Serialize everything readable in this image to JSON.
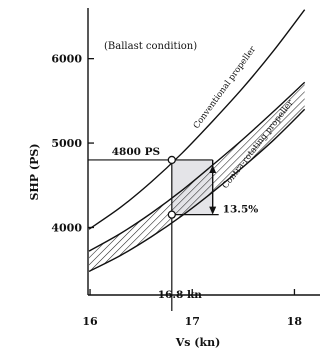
{
  "chart_data": {
    "type": "line",
    "xlabel": "Vs (kn)",
    "ylabel": "SHP (PS)",
    "xlim": [
      15.98,
      18.25
    ],
    "ylim": [
      3200,
      6600
    ],
    "xticks": [
      16,
      17,
      18
    ],
    "yticks": [
      4000,
      5000,
      6000
    ],
    "xtick_labels": [
      "16",
      "17",
      "18"
    ],
    "ytick_labels": [
      "4000",
      "5000",
      "6000"
    ],
    "grid": false,
    "condition_note": "(Ballast condition)",
    "series": [
      {
        "name": "Conventional propeller",
        "x": [
          15.99,
          16.3,
          16.6,
          16.9,
          17.2,
          17.5,
          17.8,
          18.1
        ],
        "y": [
          3980,
          4240,
          4540,
          4880,
          5260,
          5660,
          6100,
          6580
        ]
      },
      {
        "name": "Contra-rotating propeller",
        "upper": {
          "x": [
            15.99,
            16.3,
            16.6,
            16.9,
            17.2,
            17.5,
            17.8,
            18.1
          ],
          "y": [
            3720,
            3930,
            4170,
            4440,
            4740,
            5050,
            5380,
            5720
          ]
        },
        "lower": {
          "x": [
            15.99,
            16.3,
            16.6,
            16.9,
            17.2,
            17.5,
            17.8,
            18.1
          ],
          "y": [
            3480,
            3670,
            3890,
            4140,
            4420,
            4720,
            5040,
            5400
          ]
        }
      }
    ],
    "annotations": {
      "power_label": "4800 PS",
      "power_value": 4800,
      "speed_label": "16.8 kn",
      "speed_value": 16.8,
      "reduction_label": "13.5%",
      "reduced_power_value": 4152,
      "drop_x": 17.2
    }
  }
}
